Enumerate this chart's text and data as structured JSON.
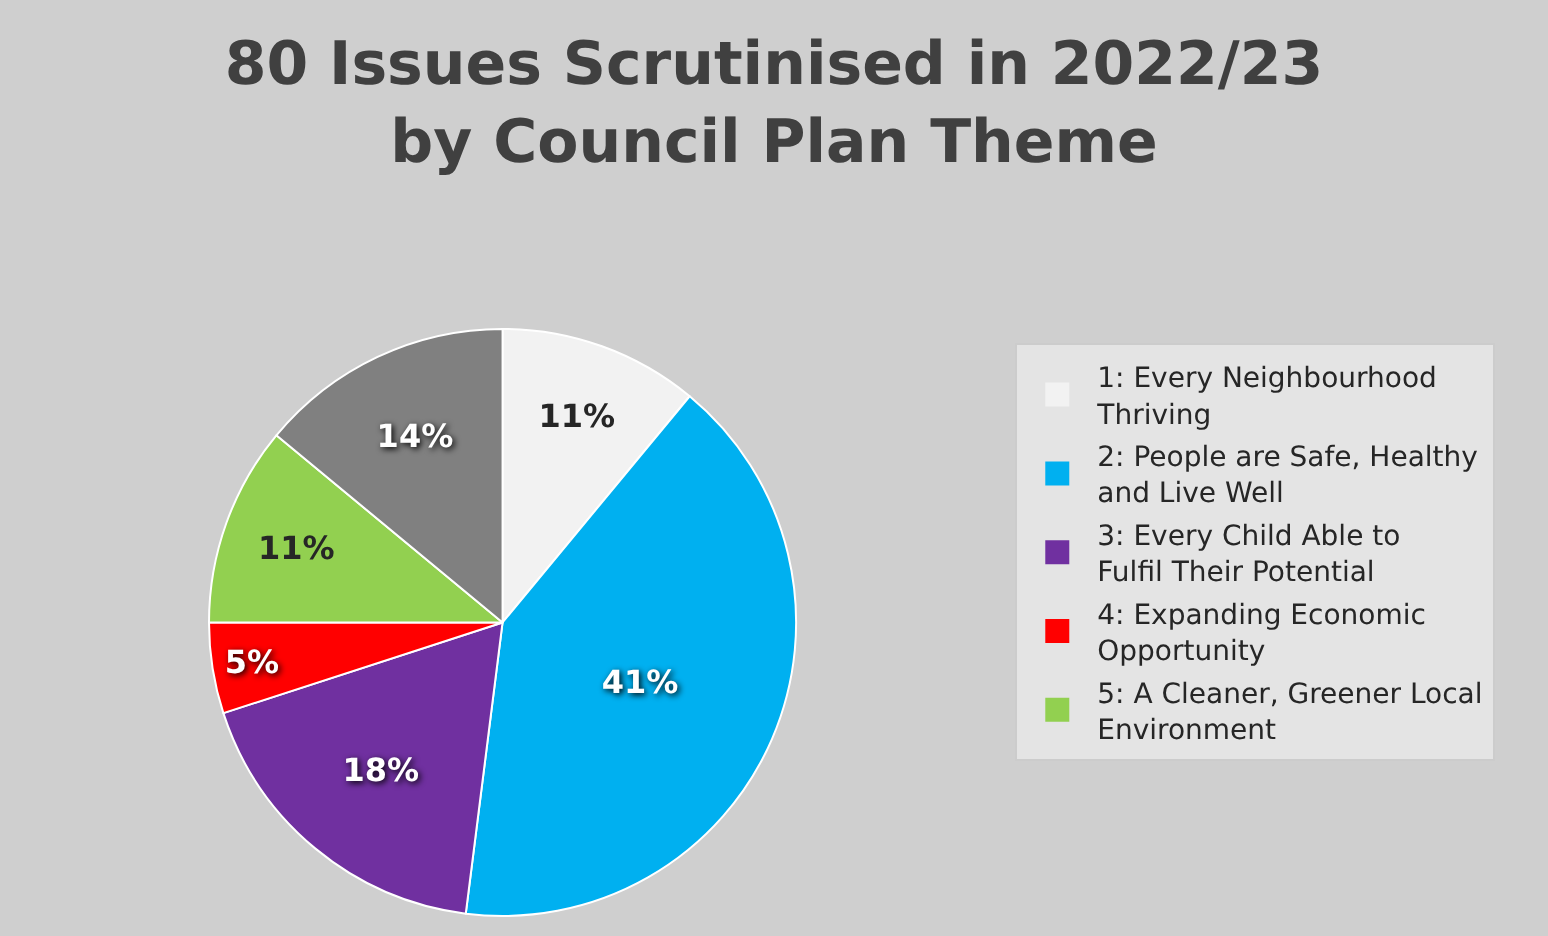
{
  "chart_data": {
    "type": "pie",
    "title": "80 Issues Scrutinised in 2022/23\nby Council Plan Theme",
    "categories": [
      "1: Every Neighbourhood Thriving",
      "2: People are Safe, Healthy and Live Well",
      "3: Every Child Able to Fulfil Their Potential",
      "4: Expanding Economic Opportunity",
      "5: A Cleaner, Greener Local Environment",
      null
    ],
    "values": [
      11,
      41,
      18,
      5,
      11,
      14
    ],
    "colors": [
      "#f2f2f2",
      "#00b0f0",
      "#7030a0",
      "#ff0000",
      "#92d050",
      "#808080"
    ],
    "value_labels": [
      "11%",
      "41%",
      "18%",
      "5%",
      "11%",
      "14%"
    ],
    "legend": "right"
  }
}
